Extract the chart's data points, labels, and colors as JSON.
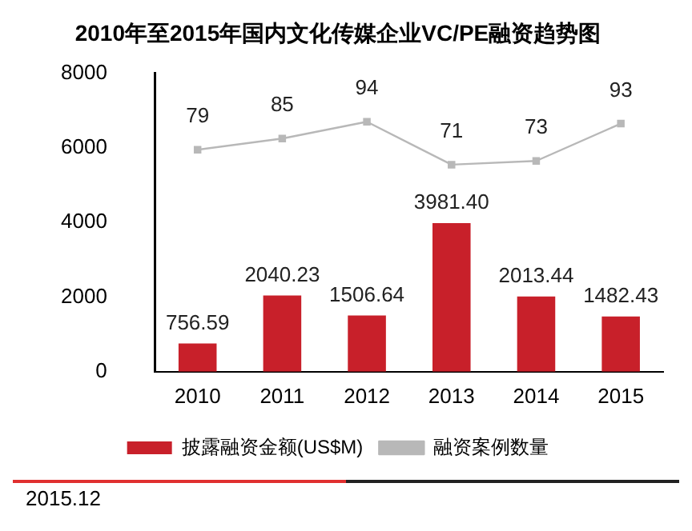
{
  "chart_data": {
    "type": "bar",
    "title": "2010年至2015年国内文化传媒企业VC/PE融资趋势图",
    "categories": [
      "2010",
      "2011",
      "2012",
      "2013",
      "2014",
      "2015"
    ],
    "series": [
      {
        "name": "披露融资金额(US$M)",
        "color": "#c8202a",
        "values": [
          756.59,
          2040.23,
          1506.64,
          3981.4,
          2013.44,
          1482.43
        ],
        "value_labels": [
          "756.59",
          "2040.23",
          "1506.64",
          "3981.40",
          "2013.44",
          "1482.43"
        ]
      },
      {
        "name": "融资案例数量",
        "type": "line",
        "axis": "y2",
        "color": "#b8b8b8",
        "marker": "square",
        "values": [
          79,
          85,
          94,
          71,
          73,
          93
        ],
        "value_labels": [
          "79",
          "85",
          "94",
          "71",
          "73",
          "93"
        ]
      }
    ],
    "ylim": [
      0,
      8000
    ],
    "yticks": [
      0,
      2000,
      4000,
      6000,
      8000
    ],
    "y2lim": [
      -40,
      120
    ],
    "grid": false,
    "legend": "bottom",
    "annotations": [
      "2015.12"
    ]
  }
}
